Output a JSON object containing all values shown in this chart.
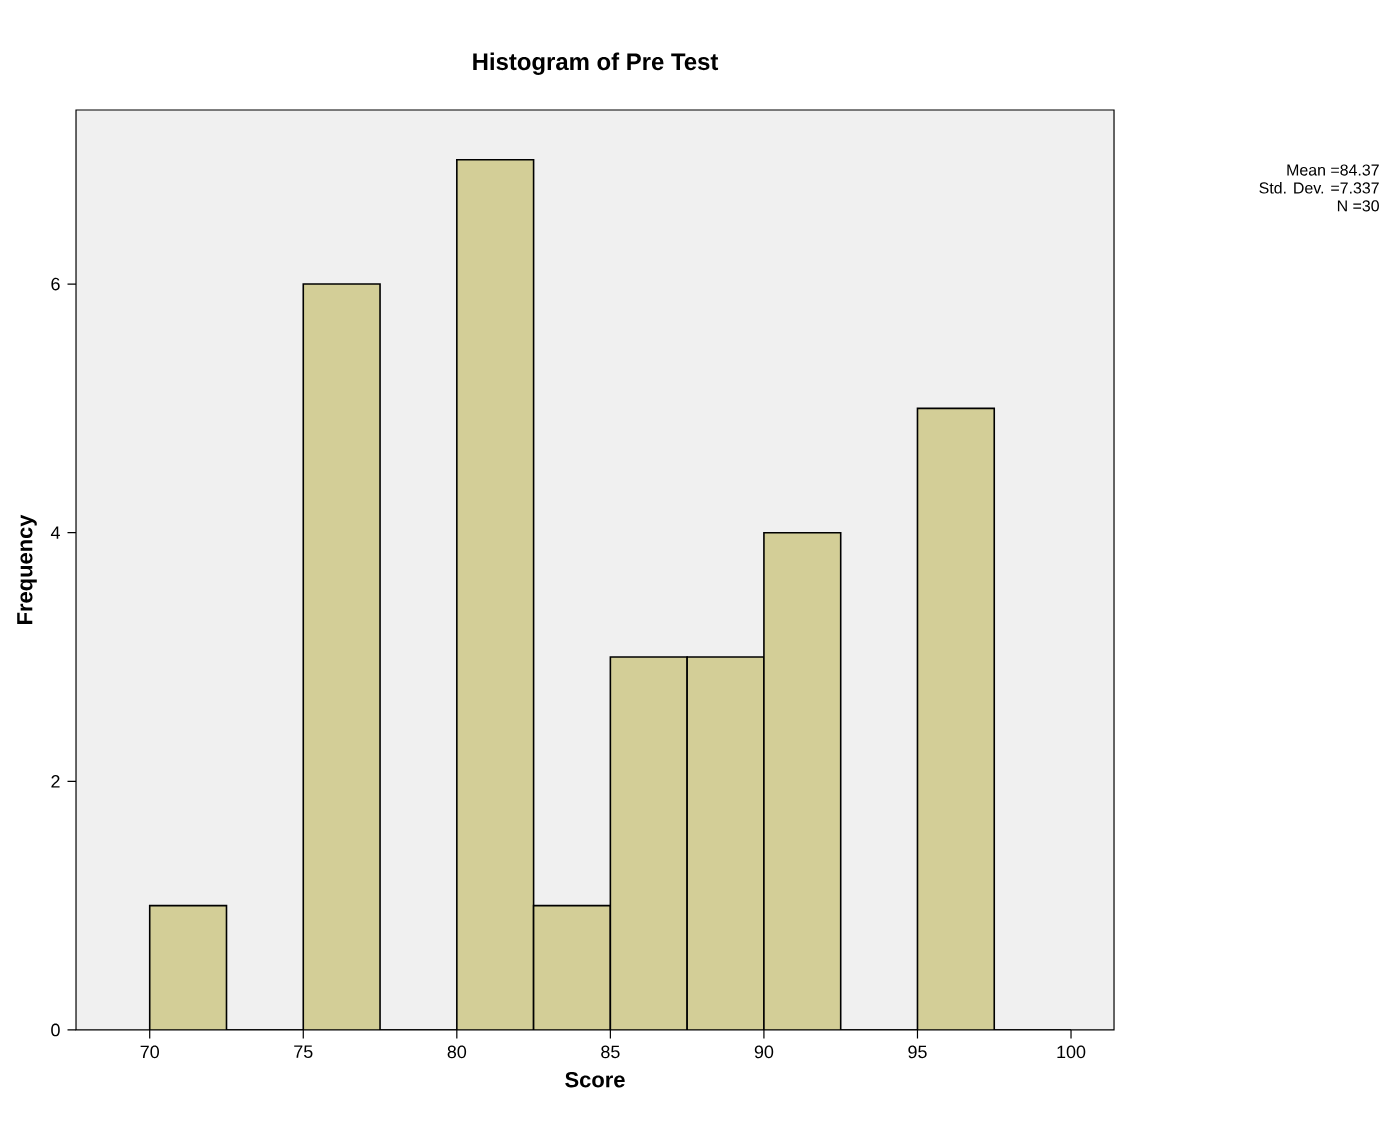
{
  "chart_data": {
    "type": "histogram",
    "title": "Histogram of Pre Test",
    "xlabel": "Score",
    "ylabel": "Frequency",
    "annotations": [
      "Mean =84.37",
      "Std. Dev. =7.337",
      "N =30"
    ],
    "bins": [
      70,
      72.5,
      75,
      77.5,
      80,
      82.5,
      85,
      87.5,
      90,
      92.5,
      95,
      97.5,
      100
    ],
    "values": [
      1,
      0,
      6,
      0,
      7,
      1,
      3,
      3,
      4,
      0,
      5,
      0
    ],
    "color": "#d3ce97",
    "xlim": [
      67.6,
      101.4
    ],
    "ylim": [
      0,
      7.4
    ],
    "xticks": [
      70,
      75,
      80,
      85,
      90,
      95,
      100
    ],
    "yticks": [
      0,
      2,
      4,
      6
    ]
  }
}
